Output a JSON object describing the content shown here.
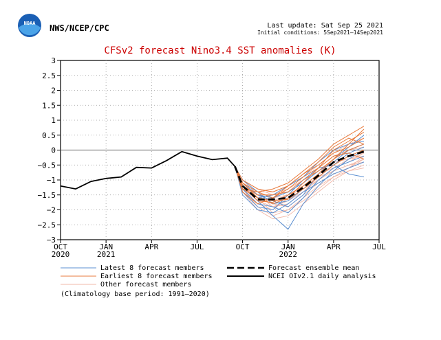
{
  "header": {
    "logo_text": "NOAA",
    "agency": "NWS/NCEP/CPC",
    "last_update": "Last update: Sat Sep 25 2021",
    "initial_conditions": "Initial conditions: 5Sep2021–14Sep2021"
  },
  "colors": {
    "title": "#cc0000",
    "latest_members": "#5b8fd1",
    "earliest_members": "#e87a3c",
    "other_members": "#f2b8a8",
    "mean": "#000000",
    "zero_line": "#888888",
    "logo_blue": "#1a5fb4"
  },
  "chart_data": {
    "type": "line",
    "title": "CFSv2 forecast Nino3.4 SST anomalies (K)",
    "ylim": [
      -3,
      3
    ],
    "yticks": [
      3,
      2.5,
      2,
      1.5,
      1,
      0.5,
      0,
      -0.5,
      -1,
      -1.5,
      -2,
      -2.5,
      -3
    ],
    "ytick_labels": [
      "3",
      "2.5",
      "2",
      "1.5",
      "1",
      "0.5",
      "0",
      "−0.5",
      "−1",
      "−1.5",
      "−2",
      "−2.5",
      "−3"
    ],
    "xlim": [
      0,
      21
    ],
    "xticks": [
      {
        "month": 0,
        "label": "OCT",
        "year": "2020"
      },
      {
        "month": 3,
        "label": "JAN",
        "year": "2021"
      },
      {
        "month": 6,
        "label": "APR",
        "year": ""
      },
      {
        "month": 9,
        "label": "JUL",
        "year": ""
      },
      {
        "month": 12,
        "label": "OCT",
        "year": ""
      },
      {
        "month": 15,
        "label": "JAN",
        "year": "2022"
      },
      {
        "month": 18,
        "label": "APR",
        "year": ""
      },
      {
        "month": 21,
        "label": "JUL",
        "year": ""
      }
    ],
    "grid": true,
    "observed": {
      "name": "NCEI OIv2.1 daily analysis",
      "x": [
        0,
        1,
        2,
        3,
        4,
        5,
        6,
        7,
        8,
        9,
        10,
        11,
        11.5
      ],
      "values": [
        -1.2,
        -1.3,
        -1.05,
        -0.95,
        -0.9,
        -0.58,
        -0.6,
        -0.35,
        -0.05,
        -0.2,
        -0.32,
        -0.27,
        -0.55
      ]
    },
    "ensemble_mean": {
      "name": "Forecast ensemble mean",
      "x": [
        11.5,
        12,
        13,
        14,
        15,
        16,
        17,
        18,
        19,
        20
      ],
      "values": [
        -0.55,
        -1.2,
        -1.65,
        -1.65,
        -1.6,
        -1.25,
        -0.85,
        -0.4,
        -0.2,
        -0.05
      ]
    },
    "member_x": [
      11.5,
      12,
      13,
      14,
      15,
      16,
      17,
      18,
      19,
      20
    ],
    "latest_members": [
      [
        -0.55,
        -1.3,
        -1.8,
        -1.9,
        -2.1,
        -1.6,
        -1.0,
        -0.6,
        -0.4,
        -0.2
      ],
      [
        -0.55,
        -1.1,
        -1.5,
        -1.7,
        -1.9,
        -1.5,
        -0.8,
        -0.3,
        0.1,
        0.5
      ],
      [
        -0.55,
        -1.4,
        -1.9,
        -2.0,
        -1.5,
        -1.0,
        -0.6,
        -0.5,
        -0.8,
        -0.9
      ],
      [
        -0.55,
        -1.2,
        -1.7,
        -2.2,
        -2.65,
        -1.8,
        -1.2,
        -0.7,
        -0.3,
        0.0
      ],
      [
        -0.55,
        -1.3,
        -1.6,
        -1.5,
        -1.2,
        -0.9,
        -0.4,
        0.0,
        0.2,
        0.3
      ],
      [
        -0.55,
        -1.0,
        -1.4,
        -1.8,
        -1.7,
        -1.3,
        -0.9,
        -0.5,
        -0.1,
        0.1
      ],
      [
        -0.55,
        -1.5,
        -2.0,
        -2.1,
        -1.8,
        -1.4,
        -1.1,
        -0.8,
        -0.6,
        -0.4
      ],
      [
        -0.55,
        -1.2,
        -1.5,
        -1.6,
        -1.4,
        -1.1,
        -0.7,
        -0.4,
        0.0,
        0.2
      ]
    ],
    "earliest_members": [
      [
        -0.55,
        -1.1,
        -1.4,
        -1.3,
        -1.1,
        -0.7,
        -0.3,
        0.2,
        0.5,
        0.8
      ],
      [
        -0.55,
        -1.3,
        -1.6,
        -1.8,
        -1.6,
        -1.1,
        -0.6,
        0.0,
        0.3,
        0.6
      ],
      [
        -0.55,
        -1.2,
        -1.7,
        -1.75,
        -1.5,
        -1.2,
        -0.8,
        -0.3,
        0.0,
        0.2
      ],
      [
        -0.55,
        -1.0,
        -1.3,
        -1.4,
        -1.2,
        -0.8,
        -0.5,
        -0.1,
        0.1,
        0.4
      ],
      [
        -0.55,
        -1.4,
        -1.8,
        -1.6,
        -1.3,
        -0.9,
        -0.6,
        -0.2,
        -0.1,
        -0.3
      ],
      [
        -0.55,
        -1.2,
        -1.5,
        -1.5,
        -1.4,
        -1.0,
        -0.7,
        -0.3,
        0.2,
        0.7
      ],
      [
        -0.55,
        -1.1,
        -1.6,
        -1.7,
        -1.65,
        -1.3,
        -0.9,
        -0.5,
        -0.2,
        0.0
      ],
      [
        -0.55,
        -1.3,
        -1.4,
        -1.6,
        -1.2,
        -0.8,
        -0.4,
        0.1,
        0.4,
        0.2
      ]
    ],
    "other_members": [
      [
        -0.55,
        -1.2,
        -1.7,
        -1.9,
        -1.7,
        -1.4,
        -1.0,
        -0.6,
        -0.3,
        -0.1
      ],
      [
        -0.55,
        -1.1,
        -1.5,
        -1.6,
        -1.5,
        -1.2,
        -0.9,
        -0.7,
        -0.5,
        -0.3
      ],
      [
        -0.55,
        -1.3,
        -1.9,
        -2.2,
        -2.0,
        -1.6,
        -1.2,
        -0.9,
        -0.7,
        -0.5
      ],
      [
        -0.55,
        -1.0,
        -1.3,
        -1.5,
        -1.3,
        -1.0,
        -0.6,
        -0.2,
        0.0,
        0.1
      ],
      [
        -0.55,
        -1.4,
        -2.0,
        -2.3,
        -2.2,
        -1.8,
        -1.4,
        -1.0,
        -0.7,
        -0.6
      ],
      [
        -0.55,
        -1.2,
        -1.6,
        -1.8,
        -1.9,
        -1.5,
        -1.1,
        -0.8,
        -0.6,
        -0.2
      ],
      [
        -0.55,
        -1.1,
        -1.4,
        -1.4,
        -1.2,
        -0.9,
        -0.5,
        -0.1,
        0.2,
        0.4
      ],
      [
        -0.55,
        -1.3,
        -1.8,
        -2.0,
        -1.6,
        -1.2,
        -0.8,
        -0.6,
        -0.4,
        -0.1
      ],
      [
        -0.55,
        -1.2,
        -1.6,
        -1.7,
        -1.5,
        -1.3,
        -1.0,
        -0.7,
        -0.5,
        -0.4
      ],
      [
        -0.55,
        -1.0,
        -1.5,
        -1.9,
        -1.8,
        -1.4,
        -0.9,
        -0.5,
        -0.2,
        0.0
      ],
      [
        -0.55,
        -1.3,
        -1.7,
        -1.6,
        -1.3,
        -1.0,
        -0.7,
        -0.4,
        -0.3,
        -0.2
      ],
      [
        -0.55,
        -1.1,
        -1.6,
        -2.1,
        -2.0,
        -1.7,
        -1.3,
        -0.9,
        -0.6,
        -0.3
      ]
    ],
    "legend": {
      "latest": "Latest 8 forecast members",
      "earliest": "Earliest 8 forecast members",
      "other": "Other forecast members",
      "mean": "Forecast ensemble mean",
      "observed": "NCEI OIv2.1 daily analysis",
      "climatology": "(Climatology base period: 1991–2020)"
    }
  }
}
